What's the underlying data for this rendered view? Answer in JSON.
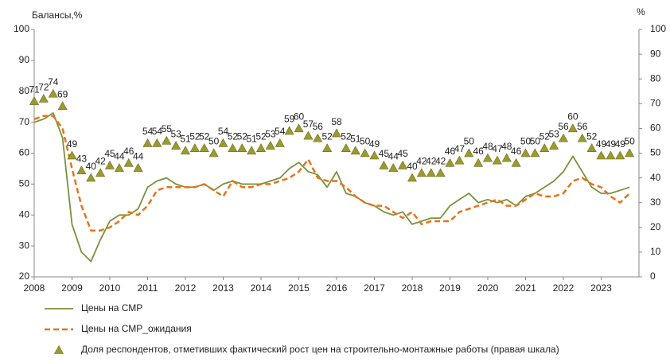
{
  "chart_data": {
    "type": "line",
    "y_label": "Балансы,%",
    "y2_label": "%",
    "x": [
      2008,
      2008.25,
      2008.5,
      2008.75,
      2009,
      2009.25,
      2009.5,
      2009.75,
      2010,
      2010.25,
      2010.5,
      2010.75,
      2011,
      2011.25,
      2011.5,
      2011.75,
      2012,
      2012.25,
      2012.5,
      2012.75,
      2013,
      2013.25,
      2013.5,
      2013.75,
      2014,
      2014.25,
      2014.5,
      2014.75,
      2015,
      2015.25,
      2015.5,
      2015.75,
      2016,
      2016.25,
      2016.5,
      2016.75,
      2017,
      2017.25,
      2017.5,
      2017.75,
      2018,
      2018.25,
      2018.5,
      2018.75,
      2019,
      2019.25,
      2019.5,
      2019.75,
      2020,
      2020.25,
      2020.5,
      2020.75,
      2021,
      2021.25,
      2021.5,
      2021.75,
      2022,
      2022.25,
      2022.5,
      2022.75,
      2023,
      2023.25,
      2023.5,
      2023.75
    ],
    "xlim": [
      2008,
      2024
    ],
    "xticks": [
      2008,
      2009,
      2010,
      2011,
      2012,
      2013,
      2014,
      2015,
      2016,
      2017,
      2018,
      2019,
      2020,
      2021,
      2022,
      2023
    ],
    "ylim": [
      20,
      100
    ],
    "yticks": [
      20,
      30,
      40,
      50,
      60,
      70,
      80,
      90,
      100
    ],
    "y2lim": [
      0,
      100
    ],
    "y2ticks": [
      0,
      10,
      20,
      30,
      40,
      50,
      60,
      70,
      80,
      90,
      100
    ],
    "series": [
      {
        "name": "Цены на СМР",
        "color": "#77933c",
        "dash": "solid",
        "mode": "line",
        "values": [
          70,
          71,
          73,
          65,
          37,
          28,
          25,
          32,
          38,
          40,
          40,
          42,
          49,
          51,
          52,
          50,
          49,
          49,
          50,
          48,
          50,
          51,
          50,
          50,
          50,
          51,
          52,
          55,
          57,
          54,
          53,
          49,
          54,
          47,
          46,
          44,
          43,
          41,
          40,
          41,
          37,
          38,
          39,
          39,
          43,
          45,
          47,
          44,
          45,
          44,
          45,
          43,
          46,
          47,
          49,
          51,
          54,
          59,
          54,
          49,
          47,
          47,
          48,
          49
        ]
      },
      {
        "name": "Цены на СМР_ожидания",
        "color": "#e8731a",
        "dash": "dashed",
        "mode": "line",
        "values": [
          71,
          72,
          72,
          68,
          55,
          43,
          35,
          35,
          36,
          38,
          41,
          40,
          43,
          48,
          49,
          49,
          49,
          49,
          50,
          48,
          46,
          51,
          49,
          49,
          50,
          50,
          51,
          52,
          54,
          58,
          52,
          51,
          51,
          49,
          46,
          44,
          43,
          43,
          41,
          39,
          41,
          37,
          38,
          38,
          38,
          41,
          42,
          43,
          44,
          45,
          43,
          43,
          45,
          47,
          46,
          46,
          47,
          51,
          52,
          50,
          49,
          46,
          44,
          47
        ]
      },
      {
        "name": "Доля респондентов, отметивших фактический рост цен на строительно-монтажные работы (правая шкала)",
        "color": "#9c9a2e",
        "mode": "markers",
        "axis": "y2",
        "values": [
          71,
          72,
          74,
          69,
          49,
          43,
          40,
          42,
          45,
          44,
          46,
          44,
          54,
          54,
          55,
          53,
          51,
          52,
          52,
          50,
          54,
          52,
          52,
          51,
          52,
          53,
          54,
          59,
          60,
          57,
          56,
          52,
          58,
          52,
          51,
          50,
          49,
          45,
          44,
          45,
          40,
          42,
          42,
          42,
          46,
          47,
          50,
          46,
          48,
          47,
          48,
          46,
          50,
          50,
          52,
          53,
          56,
          60,
          56,
          52,
          49,
          49,
          49,
          50
        ]
      }
    ]
  }
}
